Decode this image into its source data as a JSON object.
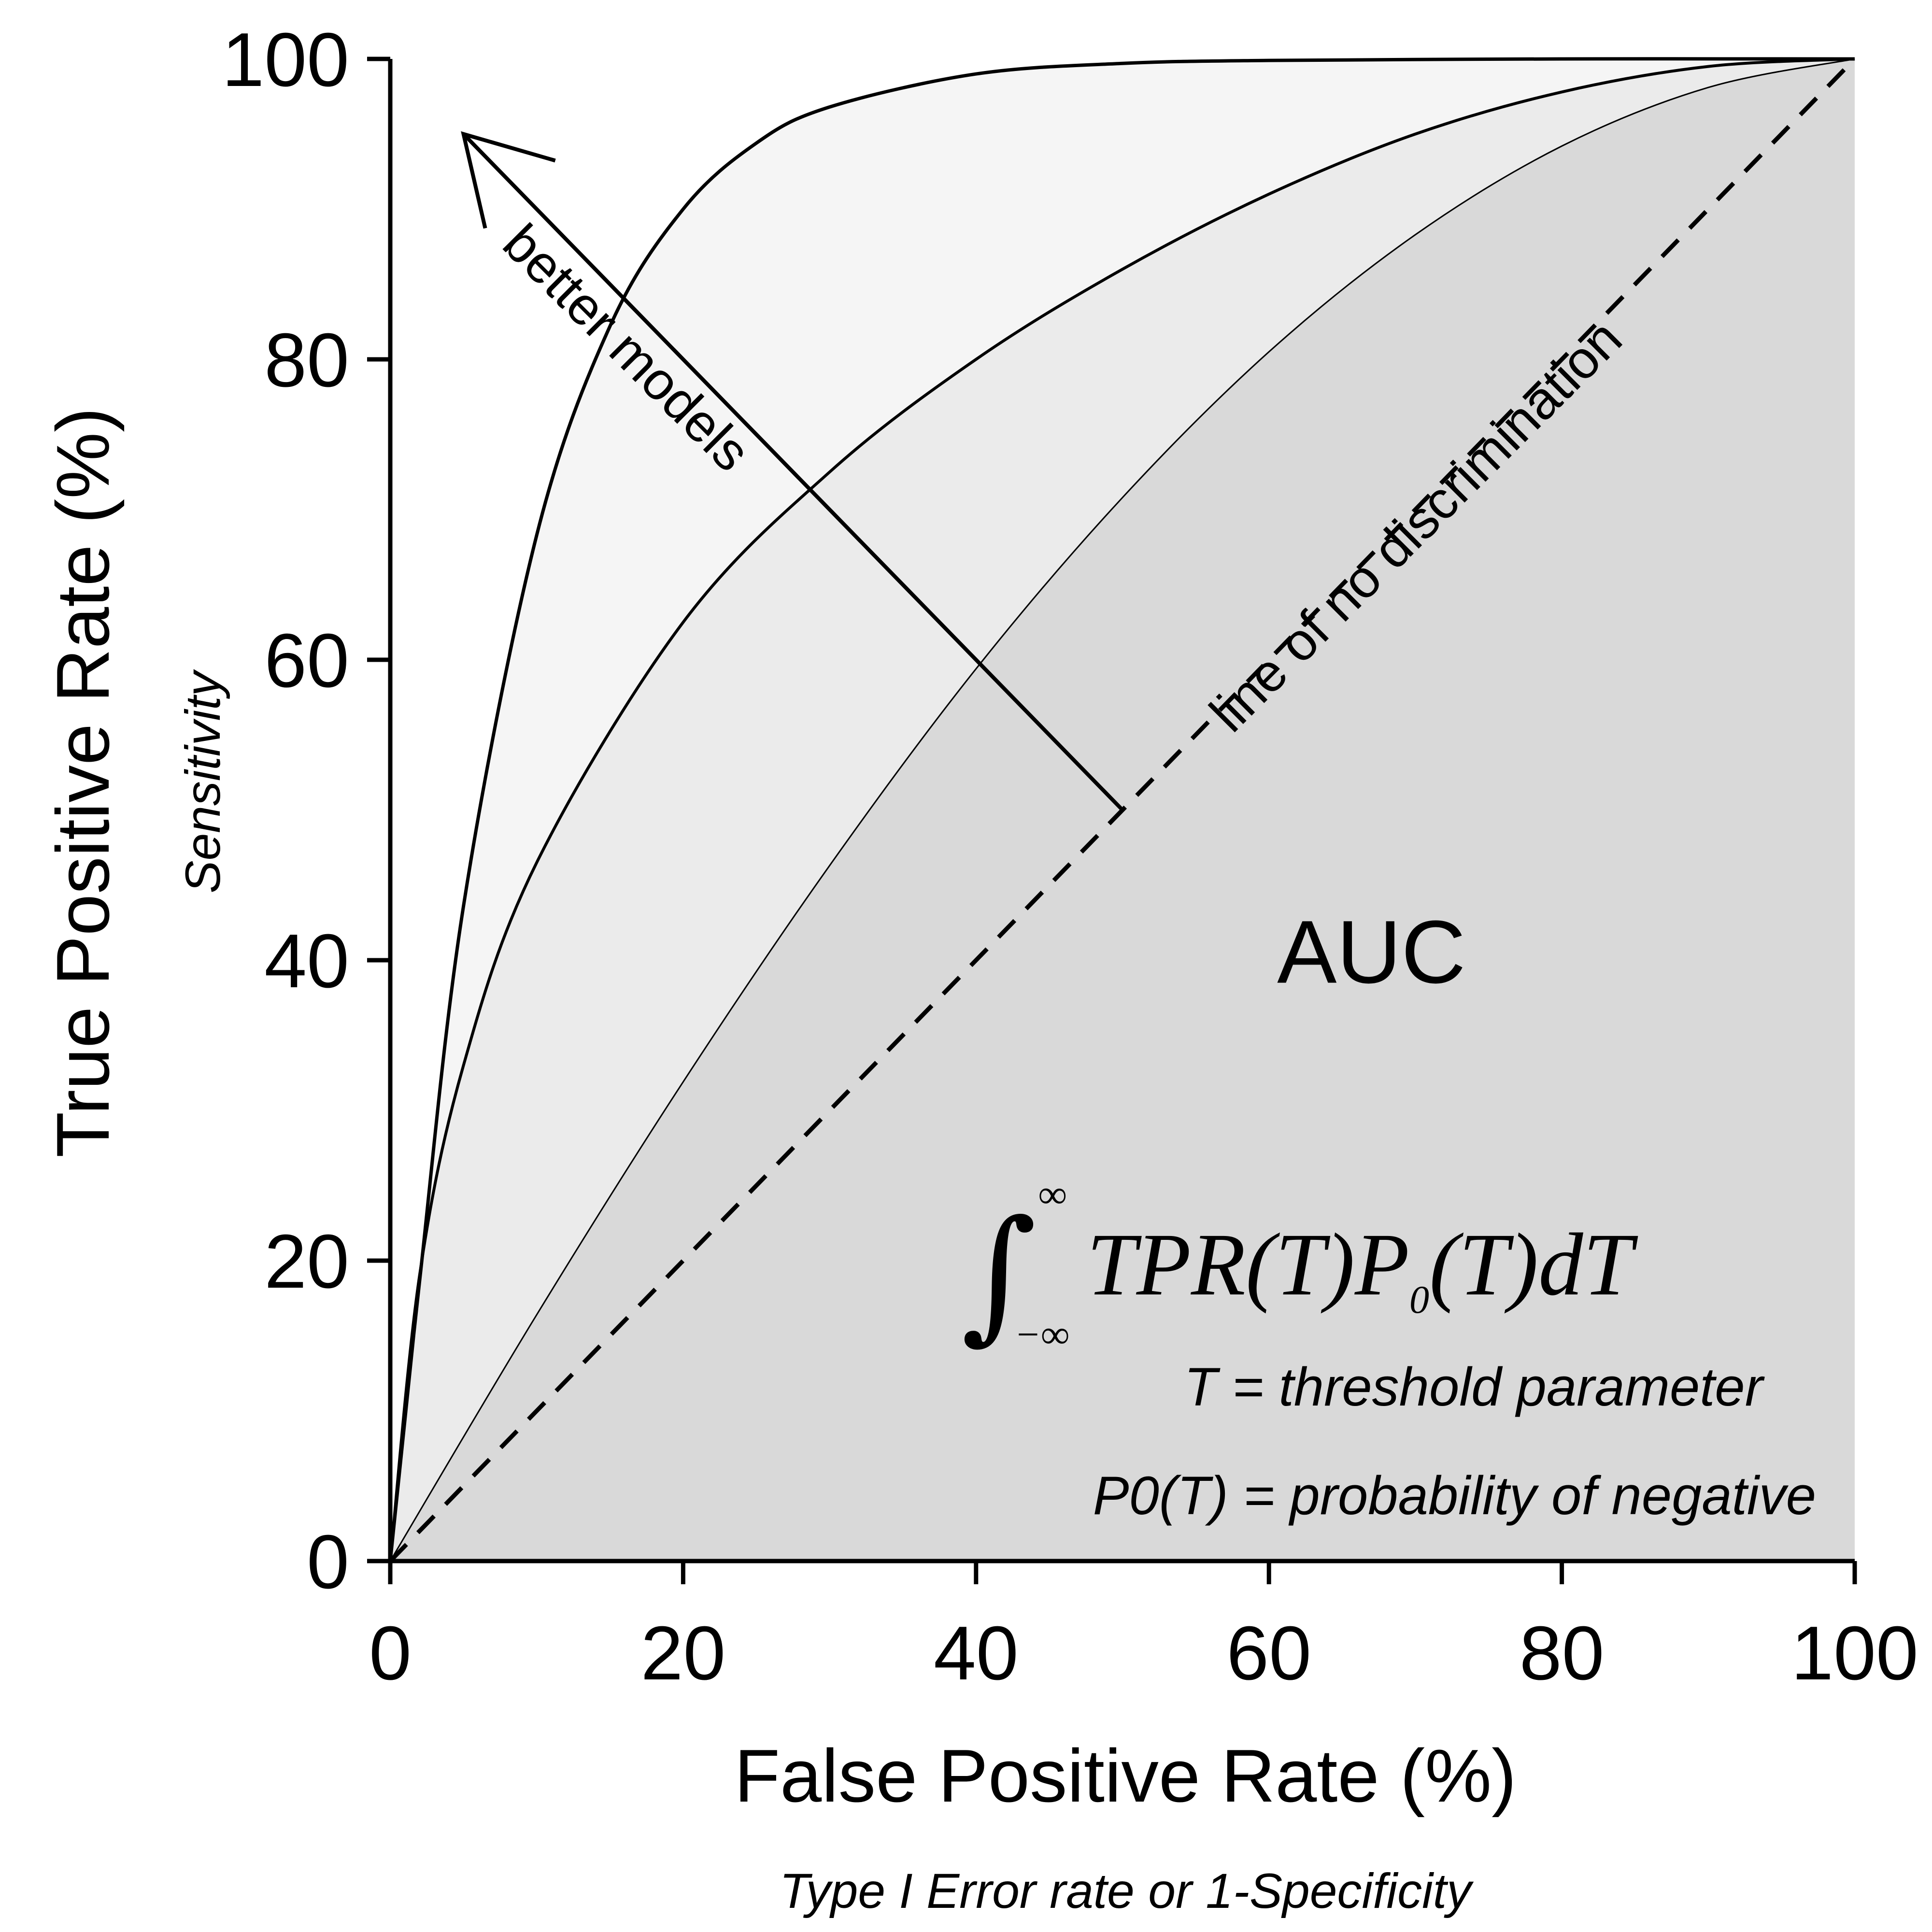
{
  "chart_data": {
    "type": "line",
    "title": "",
    "xlabel": "False Positive Rate (%)",
    "xlabel_sub": "Type I Error rate or 1-Specificity",
    "ylabel": "True Positive Rate (%)",
    "ylabel_sub": "Sensitivity",
    "xlim": [
      0,
      100
    ],
    "ylim": [
      0,
      100
    ],
    "x_ticks": [
      "0",
      "20",
      "40",
      "60",
      "80",
      "100"
    ],
    "y_ticks": [
      "0",
      "20",
      "40",
      "60",
      "80",
      "100"
    ],
    "grid": false,
    "legend": "none",
    "series": [
      {
        "curve": "weak",
        "fill": "#d9d9d9",
        "points": [
          [
            0,
            0
          ],
          [
            10,
            16.4
          ],
          [
            20,
            31.9
          ],
          [
            30,
            46.3
          ],
          [
            40,
            59.4
          ],
          [
            50,
            70.8
          ],
          [
            60,
            80.5
          ],
          [
            70,
            88.3
          ],
          [
            80,
            94.2
          ],
          [
            90,
            98.1
          ],
          [
            100,
            100
          ]
        ]
      },
      {
        "curve": "moderate",
        "fill": "#ebebeb",
        "points": [
          [
            0,
            0
          ],
          [
            2,
            19
          ],
          [
            5,
            33
          ],
          [
            10,
            46.5
          ],
          [
            20,
            62.5
          ],
          [
            30,
            72.5
          ],
          [
            40,
            80
          ],
          [
            50,
            86
          ],
          [
            60,
            91
          ],
          [
            70,
            95
          ],
          [
            80,
            97.8
          ],
          [
            90,
            99.5
          ],
          [
            100,
            100
          ]
        ]
      },
      {
        "curve": "strong",
        "fill": "#f5f5f5",
        "points": [
          [
            0,
            0
          ],
          [
            2,
            18.6
          ],
          [
            5,
            43.6
          ],
          [
            10,
            68.3
          ],
          [
            15,
            82.2
          ],
          [
            20,
            90
          ],
          [
            25,
            94.4
          ],
          [
            30,
            96.8
          ],
          [
            40,
            99
          ],
          [
            50,
            99.7
          ],
          [
            60,
            99.9
          ],
          [
            80,
            100
          ],
          [
            100,
            100
          ]
        ]
      },
      {
        "curve": "no-discrimination",
        "style": "dashed",
        "points": [
          [
            0,
            0
          ],
          [
            100,
            100
          ]
        ]
      }
    ],
    "annotations": {
      "no_discrimination_label": "line of no discrimination",
      "better_models_label": "better models",
      "better_models_arrow": {
        "from": [
          50,
          50
        ],
        "corner_angle": 135
      },
      "auc_label": "AUC",
      "formula": {
        "integrand": "TPR(T)P",
        "subscript": "0",
        "rest": "(T)dT",
        "upper_limit": "∞",
        "lower_limit": "−∞"
      },
      "definitions": [
        "T = threshold parameter",
        "P0(T) = probability of negative"
      ]
    }
  }
}
